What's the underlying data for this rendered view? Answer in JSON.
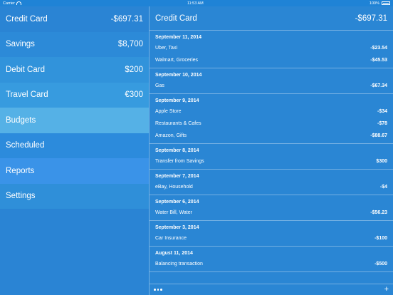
{
  "status_bar": {
    "carrier": "Carrier",
    "time": "11:53 AM",
    "battery": "100%"
  },
  "colors": {
    "row_shades": [
      "#2a84d4",
      "#2c8ad8",
      "#3193db",
      "#379bdf",
      "#55b1e6",
      "#2c8bdc",
      "#3a93e8",
      "#2f8fd9",
      "#2a84d4"
    ]
  },
  "sidebar": {
    "items": [
      {
        "label": "Credit Card",
        "value": "-$697.31"
      },
      {
        "label": "Savings",
        "value": "$8,700"
      },
      {
        "label": "Debit Card",
        "value": "$200"
      },
      {
        "label": "Travel Card",
        "value": "€300"
      },
      {
        "label": "Budgets",
        "value": ""
      },
      {
        "label": "Scheduled",
        "value": ""
      },
      {
        "label": "Reports",
        "value": ""
      },
      {
        "label": "Settings",
        "value": ""
      }
    ]
  },
  "detail": {
    "title": "Credit Card",
    "balance": "-$697.31",
    "sections": [
      {
        "date": "September 11, 2014",
        "items": [
          {
            "desc": "Uber, Taxi",
            "amount": "-$23.54"
          },
          {
            "desc": "Walmart, Groceries",
            "amount": "-$45.53"
          }
        ]
      },
      {
        "date": "September 10, 2014",
        "items": [
          {
            "desc": "Gas",
            "amount": "-$67.34"
          }
        ]
      },
      {
        "date": "September 9, 2014",
        "items": [
          {
            "desc": "Apple Store",
            "amount": "-$34"
          },
          {
            "desc": "Restaurants & Cafes",
            "amount": "-$78"
          },
          {
            "desc": "Amazon, Gifts",
            "amount": "-$88.67"
          }
        ]
      },
      {
        "date": "September 8, 2014",
        "items": [
          {
            "desc": "Transfer from Savings",
            "amount": "$300"
          }
        ]
      },
      {
        "date": "September 7, 2014",
        "items": [
          {
            "desc": "eBay, Household",
            "amount": "-$4"
          }
        ]
      },
      {
        "date": "September 6, 2014",
        "items": [
          {
            "desc": "Water Bill, Water",
            "amount": "-$56.23"
          }
        ]
      },
      {
        "date": "September 3, 2014",
        "items": [
          {
            "desc": "Car Insurance",
            "amount": "-$100"
          }
        ]
      },
      {
        "date": "August 11, 2014",
        "items": [
          {
            "desc": "Balancing transaction",
            "amount": "-$500"
          }
        ]
      }
    ]
  },
  "footer": {
    "more_icon": "more-icon",
    "add_icon": "plus-icon",
    "add_label": "+"
  }
}
